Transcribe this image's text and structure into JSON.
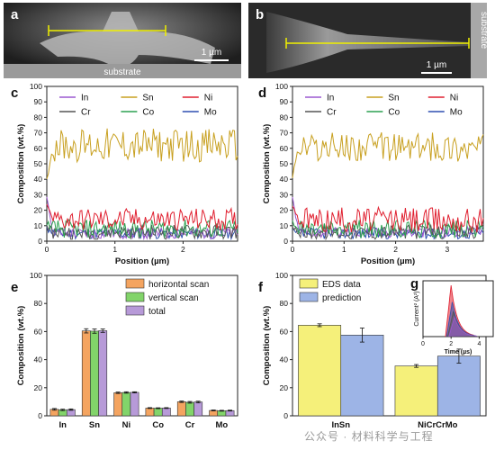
{
  "figure": {
    "panels": {
      "a": {
        "label": "a",
        "scale_bar": "1 µm",
        "substrate_label": "substrate"
      },
      "b": {
        "label": "b",
        "scale_bar": "1 µm",
        "substrate_label": "substrate"
      },
      "c": {
        "label": "c"
      },
      "d": {
        "label": "d"
      },
      "e": {
        "label": "e"
      },
      "f": {
        "label": "f"
      },
      "g": {
        "label": "g"
      }
    },
    "watermark": "公众号 · 材料科学与工程",
    "colors": {
      "In": "#9b59d0",
      "Sn": "#c8a020",
      "Ni": "#e02030",
      "Cr": "#555555",
      "Co": "#2ca050",
      "Mo": "#2f4fb0",
      "horizontal": "#f4a460",
      "vertical": "#82d46a",
      "total": "#b79ad8",
      "eds": "#f5f07a",
      "prediction": "#9db4e6"
    }
  },
  "chart_data": [
    {
      "id": "c",
      "type": "line",
      "xlabel": "Position (µm)",
      "ylabel": "Composition (wt.%)",
      "xlim": [
        0,
        2.8
      ],
      "ylim": [
        0,
        100
      ],
      "xticks": [
        0,
        1,
        2
      ],
      "yticks": [
        0,
        10,
        20,
        30,
        40,
        50,
        60,
        70,
        80,
        90,
        100
      ],
      "legend": [
        "In",
        "Sn",
        "Ni",
        "Cr",
        "Co",
        "Mo"
      ],
      "series_mean": {
        "Sn": 62,
        "Ni": 14,
        "Co": 8,
        "Cr": 6,
        "Mo": 5,
        "In": 5
      },
      "series_amp": {
        "Sn": 9,
        "Ni": 6,
        "Co": 5,
        "Cr": 4,
        "Mo": 3,
        "In": 3
      },
      "start_value": {
        "Sn": 40,
        "Ni": 22,
        "Co": 12,
        "Cr": 10,
        "Mo": 8,
        "In": 30
      }
    },
    {
      "id": "d",
      "type": "line",
      "xlabel": "Position (µm)",
      "ylabel": "Composition (wt.%)",
      "xlim": [
        0,
        3.7
      ],
      "ylim": [
        0,
        100
      ],
      "xticks": [
        0,
        1,
        2,
        3
      ],
      "yticks": [
        0,
        10,
        20,
        30,
        40,
        50,
        60,
        70,
        80,
        90,
        100
      ],
      "legend": [
        "In",
        "Sn",
        "Ni",
        "Cr",
        "Co",
        "Mo"
      ],
      "series_mean": {
        "Sn": 61,
        "Ni": 14,
        "Co": 8,
        "Cr": 6,
        "Mo": 5,
        "In": 6
      },
      "series_amp": {
        "Sn": 8,
        "Ni": 7,
        "Co": 5,
        "Cr": 4,
        "Mo": 3,
        "In": 3
      },
      "start_value": {
        "Sn": 42,
        "Ni": 24,
        "Co": 12,
        "Cr": 10,
        "Mo": 7,
        "In": 28
      }
    },
    {
      "id": "e",
      "type": "bar",
      "ylabel": "Composition (wt.%)",
      "ylim": [
        0,
        100
      ],
      "yticks": [
        0,
        20,
        40,
        60,
        80,
        100
      ],
      "categories": [
        "In",
        "Sn",
        "Ni",
        "Co",
        "Cr",
        "Mo"
      ],
      "series": [
        {
          "name": "horizontal scan",
          "values": [
            4.6,
            60.5,
            16.4,
            5.5,
            10.0,
            3.8
          ],
          "errors": [
            0.6,
            1.5,
            0.5,
            0.3,
            0.5,
            0.3
          ]
        },
        {
          "name": "vertical scan",
          "values": [
            4.2,
            60.3,
            16.6,
            5.4,
            9.6,
            3.6
          ],
          "errors": [
            0.5,
            1.5,
            0.5,
            0.3,
            0.6,
            0.3
          ]
        },
        {
          "name": "total",
          "values": [
            4.4,
            60.6,
            16.7,
            5.5,
            9.8,
            3.7
          ],
          "errors": [
            0.5,
            1.2,
            0.4,
            0.3,
            0.6,
            0.3
          ]
        }
      ],
      "legend_position": "top-right"
    },
    {
      "id": "f",
      "type": "bar",
      "ylabel": "Composition (wt.%)",
      "ylim": [
        0,
        100
      ],
      "yticks": [
        0,
        20,
        40,
        60,
        80,
        100
      ],
      "categories": [
        "InSn",
        "NiCrCrMo"
      ],
      "series": [
        {
          "name": "EDS data",
          "values": [
            64.5,
            35.5
          ],
          "errors": [
            1.0,
            1.0
          ]
        },
        {
          "name": "prediction",
          "values": [
            57.5,
            42.5
          ],
          "errors": [
            5.0,
            5.0
          ]
        }
      ],
      "legend_position": "top-left"
    },
    {
      "id": "g",
      "type": "line",
      "xlabel": "Time (µs)",
      "ylabel": "Current² (A²)",
      "xticks": [
        0,
        2,
        4
      ],
      "xlim": [
        0,
        5
      ],
      "peak_time": 2
    }
  ]
}
